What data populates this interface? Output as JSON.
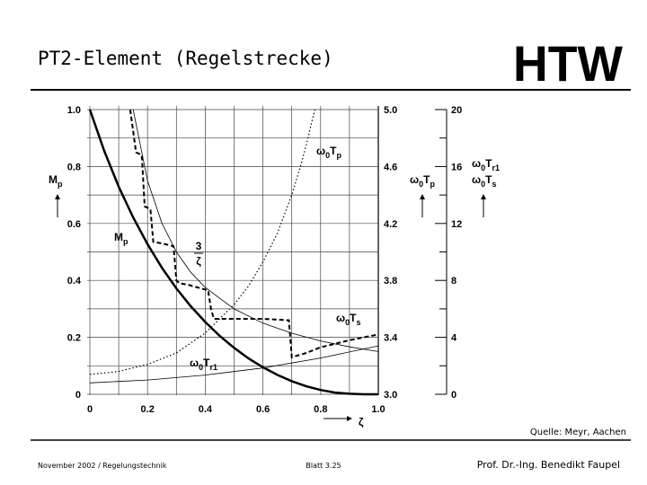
{
  "header": {
    "title": "PT2-Element (Regelstrecke)",
    "logo": "HTW"
  },
  "source": "Quelle: Meyr, Aachen",
  "footer": {
    "left": "November 2002 / Regelungstechnik",
    "center": "Blatt 3.25",
    "right": "Prof. Dr.-Ing. Benedikt Faupel"
  },
  "chart_data": {
    "type": "line",
    "grid": true,
    "xlabel": [
      {
        "text": "ζ"
      }
    ],
    "ylabel": [
      {
        "text": "M"
      },
      {
        "text": "p",
        "sub": true
      }
    ],
    "y2label": [
      {
        "text": "ω"
      },
      {
        "text": "0",
        "sub": true
      },
      {
        "text": "T"
      },
      {
        "text": "p",
        "sub": true
      }
    ],
    "y3label": [
      [
        {
          "text": "ω"
        },
        {
          "text": "0",
          "sub": true
        },
        {
          "text": "T"
        },
        {
          "text": "r1",
          "sub": true
        }
      ],
      [
        {
          "text": "ω"
        },
        {
          "text": "0",
          "sub": true
        },
        {
          "text": "T"
        },
        {
          "text": "s",
          "sub": true
        }
      ]
    ],
    "xlim": [
      0,
      1
    ],
    "xticks": [
      0,
      0.2,
      0.4,
      0.6,
      0.8,
      {
        "value": 1,
        "label": "1.0"
      }
    ],
    "ylim": [
      0,
      1
    ],
    "yticks": [
      0,
      0.2,
      0.4,
      0.6,
      0.8,
      {
        "value": 1,
        "label": "1.0"
      }
    ],
    "y2lim": [
      3,
      5
    ],
    "y2ticks": [
      {
        "value": 3,
        "label": "3.0"
      },
      3.4,
      3.8,
      4.2,
      4.6,
      {
        "value": 5,
        "label": "5.0"
      }
    ],
    "y3lim": [
      0,
      20
    ],
    "y3ticks": [
      0,
      4,
      8,
      12,
      16,
      20
    ],
    "series": [
      {
        "label": [
          {
            "text": "M"
          },
          {
            "text": "p",
            "sub": true
          }
        ],
        "color": "#000000",
        "style": "solid",
        "width": 2.5,
        "axis": "y",
        "x": [
          0,
          0.05,
          0.1,
          0.15,
          0.2,
          0.25,
          0.3,
          0.35,
          0.4,
          0.45,
          0.5,
          0.55,
          0.6,
          0.65,
          0.7,
          0.75,
          0.8,
          0.85,
          0.9,
          0.95,
          1
        ],
        "values": [
          1,
          0.855,
          0.729,
          0.621,
          0.527,
          0.444,
          0.372,
          0.309,
          0.254,
          0.205,
          0.163,
          0.126,
          0.095,
          0.068,
          0.046,
          0.028,
          0.015,
          0.006,
          0.002,
          0,
          0
        ]
      },
      {
        "label": [
          {
            "text": "ω"
          },
          {
            "text": "0",
            "sub": true
          },
          {
            "text": "T"
          },
          {
            "text": "p",
            "sub": true
          }
        ],
        "color": "#000000",
        "style": "dotted",
        "width": 1.2,
        "axis": "y2",
        "x": [
          0,
          0.1,
          0.2,
          0.3,
          0.4,
          0.5,
          0.55,
          0.6,
          0.65,
          0.7,
          0.73,
          0.75,
          0.77,
          0.78
        ],
        "values": [
          3.14,
          3.16,
          3.21,
          3.29,
          3.43,
          3.63,
          3.76,
          3.93,
          4.13,
          4.4,
          4.6,
          4.75,
          4.92,
          5
        ]
      },
      {
        "label": [
          {
            "text": "ω"
          },
          {
            "text": "0",
            "sub": true
          },
          {
            "text": "T"
          },
          {
            "text": "s",
            "sub": true
          }
        ],
        "color": "#000000",
        "style": "dashed",
        "width": 2,
        "axis": "y3",
        "x": [
          0.14,
          0.16,
          0.18,
          0.19,
          0.21,
          0.22,
          0.25,
          0.29,
          0.3,
          0.31,
          0.34,
          0.41,
          0.42,
          0.43,
          0.5,
          0.6,
          0.69,
          0.7,
          0.75,
          0.8,
          0.9,
          1
        ],
        "values": [
          20,
          17,
          16.8,
          13.2,
          13,
          10.7,
          10.6,
          10.4,
          8,
          7.8,
          7.7,
          7.3,
          6,
          5.3,
          5.3,
          5.3,
          5.2,
          2.6,
          2.9,
          3.3,
          3.8,
          4.2
        ]
      },
      {
        "label": [
          {
            "text": "ω"
          },
          {
            "text": "0",
            "sub": true
          },
          {
            "text": "T"
          },
          {
            "text": "r1",
            "sub": true
          }
        ],
        "color": "#000000",
        "style": "solid",
        "width": 0.8,
        "axis": "y3",
        "x": [
          0,
          0.2,
          0.4,
          0.6,
          0.8,
          1
        ],
        "values": [
          0.8,
          1,
          1.35,
          1.85,
          2.55,
          3.4
        ]
      },
      {
        "label": [
          {
            "numerator": "3",
            "denominator": "ζ"
          }
        ],
        "color": "#000000",
        "style": "solid",
        "width": 0.8,
        "axis": "y3",
        "x": [
          0.15,
          0.2,
          0.25,
          0.3,
          0.35,
          0.4,
          0.5,
          0.6,
          0.7,
          0.8,
          0.9,
          1
        ],
        "values": [
          20,
          15,
          12,
          10,
          8.57,
          7.5,
          6,
          5,
          4.29,
          3.75,
          3.33,
          3
        ]
      }
    ]
  }
}
